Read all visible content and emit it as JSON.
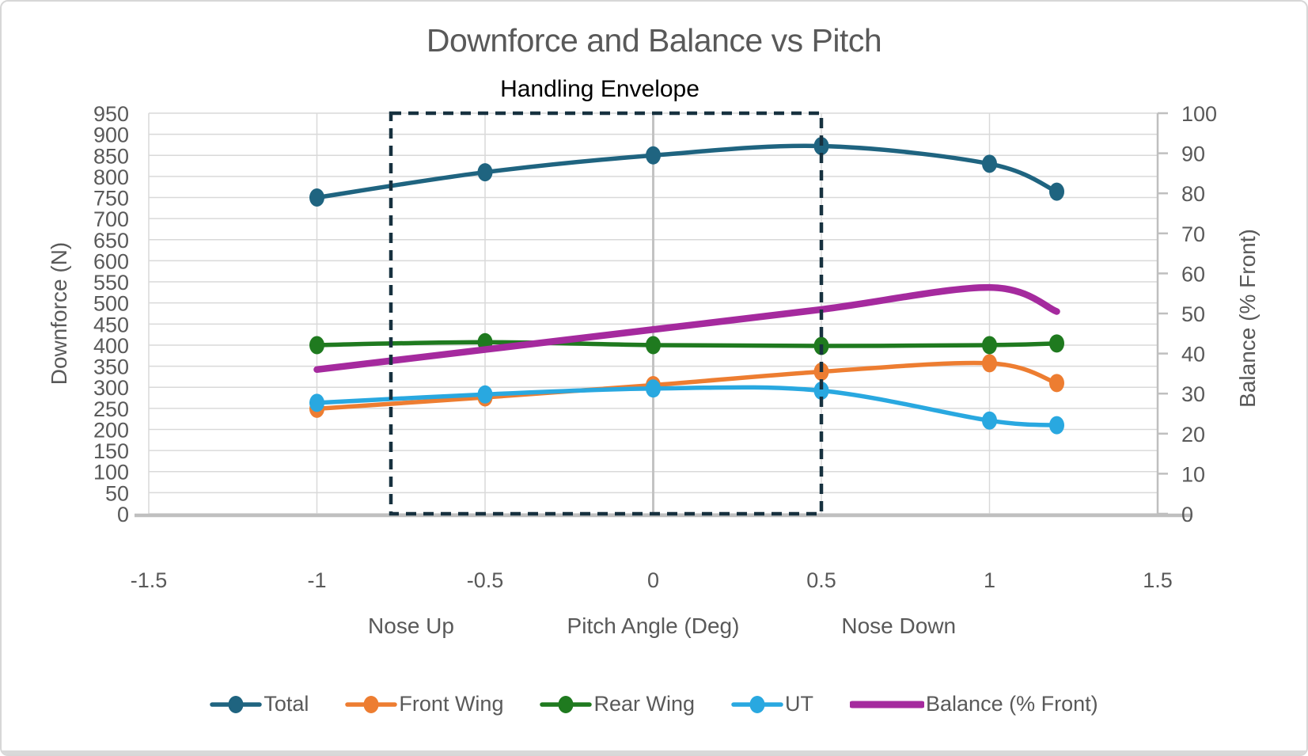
{
  "chart_data": {
    "type": "line",
    "title": "Downforce and Balance vs Pitch",
    "subtitle": "Handling Envelope",
    "xlabel": "Pitch Angle (Deg)",
    "x_zone_labels": {
      "left": "Nose Up",
      "center": "Pitch Angle (Deg)",
      "right": "Nose Down"
    },
    "ylabel_left": "Downforce (N)",
    "ylabel_right": "Balance (% Front)",
    "x": [
      -1,
      -0.5,
      0,
      0.5,
      1,
      1.2
    ],
    "x_axis": {
      "min": -1.5,
      "max": 1.5,
      "tick_step": 0.5,
      "tick_labels": [
        "-1.5",
        "-1",
        "-0.5",
        "0",
        "0.5",
        "1",
        "1.5"
      ]
    },
    "y_axis_left": {
      "min": 0,
      "max": 950,
      "tick_step": 50
    },
    "y_axis_right": {
      "min": 0,
      "max": 100,
      "tick_step": 10
    },
    "grid": true,
    "legend_position": "bottom",
    "series": [
      {
        "name": "Total",
        "axis": "left",
        "color": "#1F6480",
        "marker": true,
        "line_width": 5.5,
        "values": [
          750,
          810,
          850,
          872,
          830,
          764
        ]
      },
      {
        "name": "Front Wing",
        "axis": "left",
        "color": "#ED7D31",
        "marker": true,
        "line_width": 5.5,
        "values": [
          249,
          276,
          305,
          337,
          357,
          310
        ]
      },
      {
        "name": "Rear Wing",
        "axis": "left",
        "color": "#1F7A1F",
        "marker": true,
        "line_width": 5.5,
        "values": [
          400,
          407,
          400,
          398,
          400,
          404
        ]
      },
      {
        "name": "UT",
        "axis": "left",
        "color": "#29A8E0",
        "marker": true,
        "line_width": 5.5,
        "values": [
          263,
          283,
          297,
          292,
          221,
          210
        ]
      },
      {
        "name": "Balance (% Front)",
        "axis": "right",
        "color": "#A52A9E",
        "marker": false,
        "line_width": 8.5,
        "values": [
          36,
          41,
          46,
          51,
          56.5,
          50.5
        ]
      }
    ],
    "annotation_box": {
      "label": "Handling Envelope",
      "x0": -0.78,
      "x1": 0.5,
      "color": "#17313F"
    },
    "colors": {
      "grid": "#D9D9D9",
      "zero_gridline": "#C3C3C3",
      "axis_line": "#BFBFBF",
      "tick_text": "#595959",
      "title_text": "#595959",
      "subtitle_text": "#000000"
    }
  }
}
